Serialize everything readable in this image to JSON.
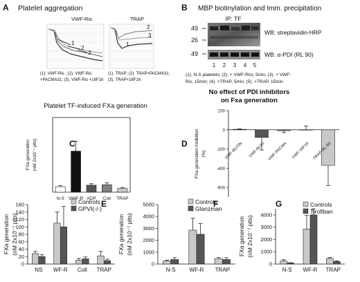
{
  "panel_a": {
    "letter": "A",
    "title": "Platelet aggregation",
    "left_label": "VWF-Ris",
    "right_label": "TRAP",
    "left_curve_labels": [
      "1",
      "2",
      "3"
    ],
    "right_curve_labels": [
      "2",
      "3",
      "1"
    ],
    "left_caption": [
      "(1). VWF-Ris ; (2). VWF-Ris",
      "+PACMA31; (3). VWF-Ris +16F16"
    ],
    "right_caption": [
      "(1). TRAP; (2). TRAP+PACMA31;",
      "(3). TRAP+16F16"
    ]
  },
  "panel_b": {
    "letter": "B",
    "title": "MBP biotinylation and Imm. precipitation",
    "ip_label": "IP: TF",
    "mw_top": [
      "49",
      "26"
    ],
    "mw_bottom": "49",
    "wb_top": "WB: streptavidin-HRP",
    "wb_bottom": "WB: α-PDI (RL 90)",
    "lanes": [
      "1",
      "2",
      "3",
      "4",
      "5"
    ],
    "caption": [
      "(1). N-S platelets; (2). + VWF-Rist, 5min; (3). + VWF-",
      "Ris, 15min; (4). +TRAP, 5min; (5). +TRAP, 15min."
    ]
  },
  "panel_c_title": "Platelet TF-induced FXa generation",
  "panel_d_title": [
    "No effect of PDI inhibitors",
    "on Fxa generation"
  ],
  "colors": {
    "white": "#ffffff",
    "black": "#111111",
    "dark": "#555555",
    "mid": "#7f7f7f",
    "light": "#c8c8c8",
    "lightest": "#e4e4e4"
  },
  "chart_data": [
    {
      "id": "C",
      "type": "bar",
      "ylabel": [
        "FXa generation",
        "(nM 2x10⁻⁷ plts)"
      ],
      "ylim": [
        0,
        300
      ],
      "yticks": [],
      "categories": [
        "N-S",
        "VWF-R",
        "ADP",
        "Coll",
        "TRAP"
      ],
      "series": [
        {
          "values": [
            22,
            165,
            28,
            30,
            15
          ],
          "errors": [
            4,
            40,
            6,
            8,
            4
          ],
          "colors": [
            "#ffffff",
            "#111111",
            "#555555",
            "#7f7f7f",
            "#c8c8c8"
          ]
        }
      ]
    },
    {
      "id": "D",
      "type": "bar",
      "ylabel": [
        "FXa generation inhibition",
        "(%)"
      ],
      "ylim": [
        -700,
        200
      ],
      "yticks": [
        200,
        0,
        -200,
        -400,
        -600
      ],
      "categories": [
        "VWF-RUTIN",
        "VWF-RL90",
        "VWF-PACMA",
        "VWF-16F16",
        "TRAP-RL-90"
      ],
      "series": [
        {
          "values": [
            5,
            -80,
            -10,
            0,
            -370
          ],
          "errors": [
            5,
            130,
            20,
            40,
            210
          ],
          "colors": [
            "#111111",
            "#555555",
            "#7f7f7f",
            "#ffffff",
            "#c8c8c8"
          ]
        }
      ]
    },
    {
      "id": "E",
      "type": "bar",
      "ylabel": [
        "FXa generation",
        "(nM 2x10⁻⁷ plts)"
      ],
      "ylim": [
        0,
        160
      ],
      "yticks": [
        0,
        20,
        40,
        60,
        80,
        100,
        120,
        140,
        160
      ],
      "categories": [
        "NS",
        "WF-R",
        "Coll",
        "TRAP"
      ],
      "series": [
        {
          "name": "Controls",
          "values": [
            28,
            110,
            10,
            22
          ],
          "errors": [
            6,
            30,
            5,
            12
          ],
          "color": "#c8c8c8"
        },
        {
          "name": "GPVI(-/-)",
          "values": [
            20,
            100,
            14,
            9
          ],
          "errors": [
            5,
            55,
            5,
            4
          ],
          "color": "#555555"
        }
      ]
    },
    {
      "id": "F",
      "type": "bar",
      "ylabel": [
        "FXa generation",
        "(nM 2x10⁻⁷ plts)"
      ],
      "ylim": [
        0,
        5000
      ],
      "yticks": [
        0,
        1000,
        2000,
        3000,
        4000,
        5000
      ],
      "categories": [
        "N-S",
        "WF-R",
        "TRAP"
      ],
      "series": [
        {
          "name": "Controls",
          "values": [
            250,
            2850,
            450
          ],
          "errors": [
            80,
            1000,
            100
          ],
          "color": "#c8c8c8"
        },
        {
          "name": "Glanzman",
          "values": [
            380,
            2500,
            380
          ],
          "errors": [
            150,
            900,
            150
          ],
          "color": "#555555"
        }
      ]
    },
    {
      "id": "G",
      "type": "bar",
      "ylabel": [
        "FXa generation",
        "(nM 2x10⁻⁷ plts)"
      ],
      "ylim": [
        0,
        4500
      ],
      "yticks": [
        0,
        1000,
        2000,
        3000,
        4000
      ],
      "categories": [
        "N-S",
        "WF-R",
        "TRAP"
      ],
      "series": [
        {
          "name": "Controls",
          "values": [
            250,
            2850,
            450
          ],
          "errors": [
            100,
            1100,
            80
          ],
          "color": "#c8c8c8"
        },
        {
          "name": "Tirofiban",
          "values": [
            80,
            4000,
            200
          ],
          "errors": [
            30,
            500,
            60
          ],
          "color": "#555555"
        }
      ]
    }
  ]
}
